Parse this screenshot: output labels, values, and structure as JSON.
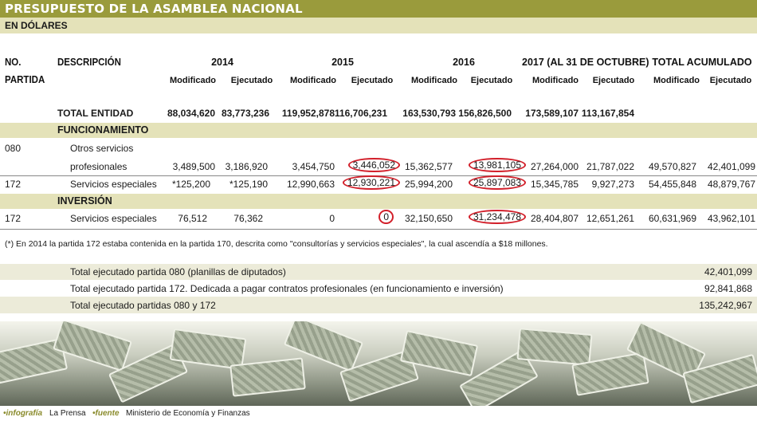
{
  "title": "PRESUPUESTO DE LA ASAMBLEA NACIONAL",
  "subtitle": "EN DÓLARES",
  "headers": {
    "partida_1": "NO.",
    "partida_2": "PARTIDA",
    "descripcion": "DESCRIPCIÓN",
    "y2014": "2014",
    "y2015": "2015",
    "y2016": "2016",
    "y2017": "2017 (AL 31 DE OCTUBRE)",
    "total": "TOTAL ACUMULADO",
    "modificado": "Modificado",
    "ejecutado": "Ejecutado"
  },
  "total_entidad": {
    "label": "TOTAL ENTIDAD",
    "values": [
      "88,034,620",
      "83,773,236",
      "119,952,878",
      "116,706,231",
      "163,530,793",
      "156,826,500",
      "173,589,107",
      "113,167,854"
    ]
  },
  "sections": {
    "funcionamiento": "FUNCIONAMIENTO",
    "inversion": "INVERSIÓN"
  },
  "rows": [
    {
      "partida": "080",
      "desc_1": "Otros servicios",
      "desc_2": "profesionales",
      "values": [
        "3,489,500",
        "3,186,920",
        "3,454,750",
        "3,446,052",
        "15,362,577",
        "13,981,105",
        "27,264,000",
        "21,787,022",
        "49,570,827",
        "42,401,099"
      ]
    },
    {
      "partida": "172",
      "desc_1": "Servicios especiales",
      "values": [
        "*125,200",
        "*125,190",
        "12,990,663",
        "12,930,221",
        "25,994,200",
        "25,897,083",
        "15,345,785",
        "9,927,273",
        "54,455,848",
        "48,879,767"
      ]
    },
    {
      "partida": "172",
      "desc_1": "Servicios especiales",
      "values": [
        "76,512",
        "76,362",
        "0",
        "0",
        "32,150,650",
        "31,234,478",
        "28,404,807",
        "12,651,261",
        "60,631,969",
        "43,962,101"
      ]
    }
  ],
  "footnote": "(*) En 2014 la partida 172 estaba contenida en la partida 170, descrita como \"consultorías y servicios especiales\", la cual ascendía a $18 millones.",
  "summary": [
    {
      "label": "Total ejecutado partida 080 (planillas de diputados)",
      "value": "42,401,099"
    },
    {
      "label": "Total ejecutado partida 172. Dedicada a pagar contratos profesionales (en funcionamiento e inversión)",
      "value": "92,841,868"
    },
    {
      "label": "Total ejecutado partidas 080 y 172",
      "value": "135,242,967"
    }
  ],
  "footer": {
    "infografia_key": "•infografía",
    "infografia_val": "La Prensa",
    "fuente_key": "•fuente",
    "fuente_val": "Ministerio de Economía y Finanzas"
  },
  "colors": {
    "title_bar": "#9a9b3c",
    "section_band": "#e4e2b9",
    "highlight_circle": "#d21f2a"
  },
  "image": "money-bills-pile"
}
